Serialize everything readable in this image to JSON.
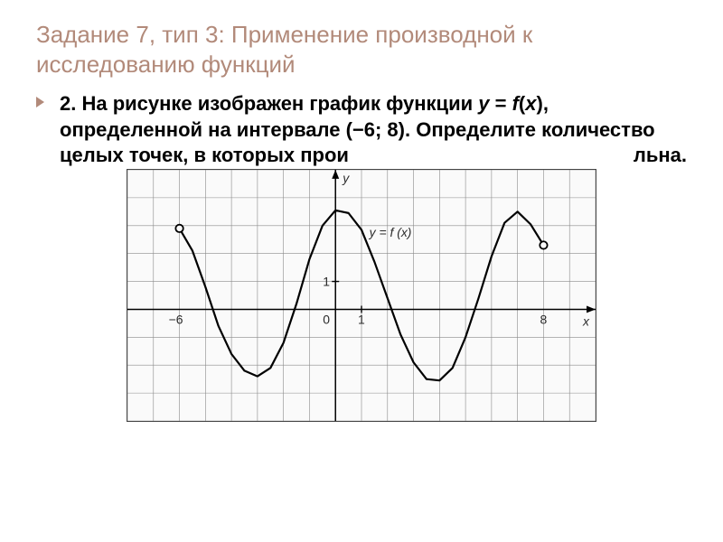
{
  "slide": {
    "title": "Задание 7, тип 3: Применение производной к исследованию функций",
    "body_prefix": "2. На рисунке изображен график функции ",
    "body_fn_y": "y",
    "body_eq": " = ",
    "body_fn_f": "f",
    "body_paren_open": "(",
    "body_fn_x": "x",
    "body_paren_close": ")",
    "body_mid": ", определенной на интервале (−6; 8). Определите количество целых точек, в которых прои",
    "body_tail": "льна."
  },
  "chart": {
    "type": "line",
    "background_color": "#fafafa",
    "border_color": "#454545",
    "grid_color": "#8a8a8a",
    "axis_color": "#000000",
    "curve_color": "#000000",
    "curve_width": 2.2,
    "label_color": "#2b2b2b",
    "label_fontsize": 14,
    "xlim": [
      -8,
      10
    ],
    "ylim": [
      -4,
      5
    ],
    "xtick_step": 1,
    "ytick_step": 1,
    "x_labels": {
      "-6": "−6",
      "1": "1",
      "8": "8"
    },
    "y_labels": {
      "1": "1"
    },
    "origin_label": "0",
    "curve_label": "y = f (x)",
    "open_points": [
      {
        "x": -6,
        "y": 2.9
      },
      {
        "x": 8,
        "y": 2.3
      }
    ],
    "series": [
      {
        "x": -6.0,
        "y": 2.9
      },
      {
        "x": -5.5,
        "y": 2.1
      },
      {
        "x": -5.0,
        "y": 0.8
      },
      {
        "x": -4.5,
        "y": -0.6
      },
      {
        "x": -4.0,
        "y": -1.6
      },
      {
        "x": -3.5,
        "y": -2.2
      },
      {
        "x": -3.0,
        "y": -2.4
      },
      {
        "x": -2.5,
        "y": -2.1
      },
      {
        "x": -2.0,
        "y": -1.2
      },
      {
        "x": -1.5,
        "y": 0.2
      },
      {
        "x": -1.0,
        "y": 1.8
      },
      {
        "x": -0.5,
        "y": 3.0
      },
      {
        "x": 0.0,
        "y": 3.55
      },
      {
        "x": 0.5,
        "y": 3.45
      },
      {
        "x": 1.0,
        "y": 2.85
      },
      {
        "x": 1.5,
        "y": 1.7
      },
      {
        "x": 2.0,
        "y": 0.4
      },
      {
        "x": 2.5,
        "y": -0.9
      },
      {
        "x": 3.0,
        "y": -1.9
      },
      {
        "x": 3.5,
        "y": -2.5
      },
      {
        "x": 4.0,
        "y": -2.55
      },
      {
        "x": 4.5,
        "y": -2.1
      },
      {
        "x": 5.0,
        "y": -1.0
      },
      {
        "x": 5.5,
        "y": 0.4
      },
      {
        "x": 6.0,
        "y": 1.9
      },
      {
        "x": 6.5,
        "y": 3.1
      },
      {
        "x": 7.0,
        "y": 3.5
      },
      {
        "x": 7.5,
        "y": 3.05
      },
      {
        "x": 8.0,
        "y": 2.3
      }
    ]
  }
}
